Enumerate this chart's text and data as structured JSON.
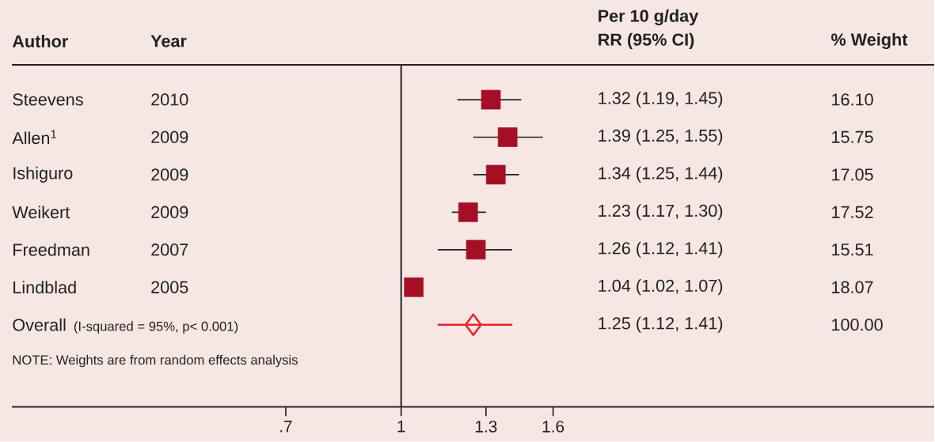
{
  "chart_data": {
    "type": "scatter",
    "orientation": "horizontal",
    "categories": [
      "Steevens",
      "Allen$^{1}$",
      "Ishiguro",
      "Weikert",
      "Freedman",
      "Lindblad",
      "Overall"
    ],
    "series": [
      {
        "marker": "square",
        "color": "#a50f26",
        "values": [
          1.32,
          1.39,
          1.34,
          1.23,
          1.26,
          1.04,
          null
        ],
        "errors": [
          [
            1.19,
            1.45
          ],
          [
            1.25,
            1.55
          ],
          [
            1.25,
            1.44
          ],
          [
            1.17,
            1.3
          ],
          [
            1.12,
            1.41
          ],
          null,
          null
        ]
      },
      {
        "marker": "diamond",
        "color": "#e8252d",
        "values": [
          null,
          null,
          null,
          null,
          null,
          null,
          1.25
        ],
        "errors": [
          null,
          null,
          null,
          null,
          null,
          null,
          [
            1.12,
            1.41
          ]
        ]
      }
    ],
    "log": "x",
    "xlim": [
      0.3,
      5.2
    ],
    "xticks": [
      {
        "value": 0.7,
        "label": ".7"
      },
      1,
      1.3,
      1.6
    ],
    "ref_lines": [
      {
        "axis": "x",
        "value": 1
      }
    ],
    "annotations": [
      "Author",
      "Year",
      "Per 10 g/day",
      "RR (95% CI)",
      "% Weight",
      "(I-squared = 95%, p< 0.001)",
      "NOTE: Weights are from random effects analysis",
      "2010",
      "2009",
      "2009",
      "2009",
      "2007",
      "2005",
      "16.10",
      "15.75",
      "17.05",
      "17.52",
      "15.51",
      "18.07",
      "100.00",
      "1.32 (1.19, 1.45)",
      "1.39 (1.25, 1.55)",
      "1.34 (1.25, 1.44)",
      "1.23 (1.17, 1.30)",
      "1.26 (1.12, 1.41)",
      "1.04 (1.02, 1.07)",
      "1.25 (1.12, 1.41)"
    ]
  }
}
